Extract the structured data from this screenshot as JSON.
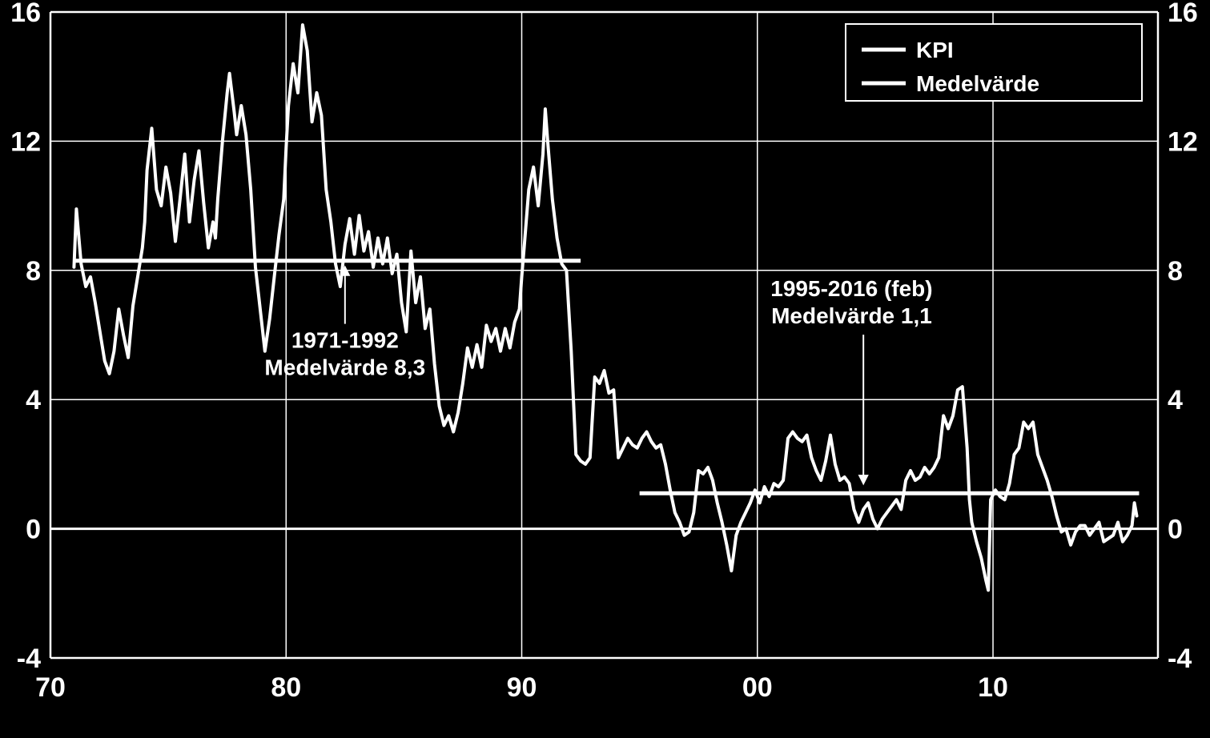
{
  "chart": {
    "type": "line",
    "background_color": "#000000",
    "line_color": "#ffffff",
    "grid_color": "#ffffff",
    "text_color": "#ffffff",
    "line_width": 4,
    "mean_line_width": 5,
    "tick_fontsize": 34,
    "annot_fontsize": 28,
    "legend_fontsize": 28,
    "x": {
      "min": 70,
      "max": 17,
      "domain_start": 1970,
      "domain_end": 2017,
      "ticks": [
        1970,
        1980,
        1990,
        2000,
        2010
      ],
      "tick_labels": [
        "70",
        "80",
        "90",
        "00",
        "10"
      ]
    },
    "y": {
      "min": -4,
      "max": 16,
      "ticks": [
        -4,
        0,
        4,
        8,
        12,
        16
      ],
      "tick_labels": [
        "-4",
        "0",
        "4",
        "8",
        "12",
        "16"
      ]
    },
    "y_right": {
      "ticks": [
        -4,
        0,
        4,
        8,
        12,
        16
      ],
      "tick_labels": [
        "-4",
        "0",
        "4",
        "8",
        "12",
        "16"
      ]
    },
    "legend": {
      "items": [
        {
          "label": "KPI"
        },
        {
          "label": "Medelvärde"
        }
      ]
    },
    "means": [
      {
        "from_year": 1971,
        "to_year": 1992.5,
        "value": 8.3
      },
      {
        "from_year": 1995,
        "to_year": 2016.2,
        "value": 1.1
      }
    ],
    "annotations": [
      {
        "line1": "1971-1992",
        "line2": "Medelvärde 8,3",
        "x_year": 1982.5,
        "y_value": 5.6,
        "arrow_to_y": 8.1,
        "arrow_x_year": 1982.5
      },
      {
        "line1": "1995-2016 (feb)",
        "line2": "Medelvärde 1,1",
        "x_year": 2004,
        "y_value": 7.2,
        "arrow_to_y": 1.4,
        "arrow_x_year": 2004.5
      }
    ],
    "series_kpi": [
      [
        1971.0,
        8.1
      ],
      [
        1971.1,
        9.9
      ],
      [
        1971.3,
        8.2
      ],
      [
        1971.5,
        7.5
      ],
      [
        1971.7,
        7.8
      ],
      [
        1971.9,
        7.0
      ],
      [
        1972.1,
        6.1
      ],
      [
        1972.3,
        5.2
      ],
      [
        1972.5,
        4.8
      ],
      [
        1972.7,
        5.5
      ],
      [
        1972.9,
        6.8
      ],
      [
        1973.1,
        6.0
      ],
      [
        1973.3,
        5.3
      ],
      [
        1973.5,
        6.9
      ],
      [
        1973.7,
        7.8
      ],
      [
        1973.9,
        8.7
      ],
      [
        1974.0,
        9.5
      ],
      [
        1974.1,
        11.1
      ],
      [
        1974.3,
        12.4
      ],
      [
        1974.5,
        10.5
      ],
      [
        1974.7,
        10.0
      ],
      [
        1974.9,
        11.2
      ],
      [
        1975.1,
        10.4
      ],
      [
        1975.3,
        8.9
      ],
      [
        1975.5,
        10.2
      ],
      [
        1975.7,
        11.6
      ],
      [
        1975.9,
        9.5
      ],
      [
        1976.1,
        10.8
      ],
      [
        1976.3,
        11.7
      ],
      [
        1976.5,
        10.1
      ],
      [
        1976.7,
        8.7
      ],
      [
        1976.9,
        9.5
      ],
      [
        1977.0,
        9.0
      ],
      [
        1977.1,
        10.2
      ],
      [
        1977.3,
        12.0
      ],
      [
        1977.5,
        13.5
      ],
      [
        1977.6,
        14.1
      ],
      [
        1977.8,
        12.9
      ],
      [
        1977.9,
        12.2
      ],
      [
        1978.1,
        13.1
      ],
      [
        1978.3,
        12.2
      ],
      [
        1978.5,
        10.5
      ],
      [
        1978.7,
        8.1
      ],
      [
        1978.9,
        6.8
      ],
      [
        1979.1,
        5.5
      ],
      [
        1979.3,
        6.5
      ],
      [
        1979.5,
        7.8
      ],
      [
        1979.7,
        9.1
      ],
      [
        1979.9,
        10.2
      ],
      [
        1980.0,
        11.8
      ],
      [
        1980.1,
        13.1
      ],
      [
        1980.3,
        14.4
      ],
      [
        1980.5,
        13.5
      ],
      [
        1980.7,
        15.6
      ],
      [
        1980.9,
        14.8
      ],
      [
        1981.1,
        12.6
      ],
      [
        1981.3,
        13.5
      ],
      [
        1981.5,
        12.8
      ],
      [
        1981.7,
        10.5
      ],
      [
        1981.9,
        9.5
      ],
      [
        1982.1,
        8.2
      ],
      [
        1982.3,
        7.5
      ],
      [
        1982.5,
        8.8
      ],
      [
        1982.7,
        9.6
      ],
      [
        1982.9,
        8.5
      ],
      [
        1983.1,
        9.7
      ],
      [
        1983.3,
        8.6
      ],
      [
        1983.5,
        9.2
      ],
      [
        1983.7,
        8.1
      ],
      [
        1983.9,
        9.0
      ],
      [
        1984.1,
        8.2
      ],
      [
        1984.3,
        9.0
      ],
      [
        1984.5,
        7.9
      ],
      [
        1984.7,
        8.5
      ],
      [
        1984.9,
        7.0
      ],
      [
        1985.1,
        6.1
      ],
      [
        1985.3,
        8.6
      ],
      [
        1985.5,
        7.0
      ],
      [
        1985.7,
        7.8
      ],
      [
        1985.9,
        6.2
      ],
      [
        1986.1,
        6.8
      ],
      [
        1986.3,
        5.1
      ],
      [
        1986.5,
        3.8
      ],
      [
        1986.7,
        3.2
      ],
      [
        1986.9,
        3.5
      ],
      [
        1987.1,
        3.0
      ],
      [
        1987.3,
        3.6
      ],
      [
        1987.5,
        4.5
      ],
      [
        1987.7,
        5.6
      ],
      [
        1987.9,
        5.0
      ],
      [
        1988.1,
        5.7
      ],
      [
        1988.3,
        5.0
      ],
      [
        1988.5,
        6.3
      ],
      [
        1988.7,
        5.8
      ],
      [
        1988.9,
        6.2
      ],
      [
        1989.1,
        5.5
      ],
      [
        1989.3,
        6.2
      ],
      [
        1989.5,
        5.6
      ],
      [
        1989.7,
        6.4
      ],
      [
        1989.9,
        6.8
      ],
      [
        1990.0,
        7.8
      ],
      [
        1990.1,
        8.7
      ],
      [
        1990.3,
        10.5
      ],
      [
        1990.5,
        11.2
      ],
      [
        1990.7,
        10.0
      ],
      [
        1990.9,
        11.6
      ],
      [
        1991.0,
        13.0
      ],
      [
        1991.1,
        12.0
      ],
      [
        1991.3,
        10.2
      ],
      [
        1991.5,
        9.0
      ],
      [
        1991.7,
        8.2
      ],
      [
        1991.9,
        8.0
      ],
      [
        1992.1,
        5.5
      ],
      [
        1992.3,
        2.3
      ],
      [
        1992.5,
        2.1
      ],
      [
        1992.7,
        2.0
      ],
      [
        1992.9,
        2.2
      ],
      [
        1993.1,
        4.7
      ],
      [
        1993.3,
        4.5
      ],
      [
        1993.5,
        4.9
      ],
      [
        1993.7,
        4.2
      ],
      [
        1993.9,
        4.3
      ],
      [
        1994.1,
        2.2
      ],
      [
        1994.3,
        2.5
      ],
      [
        1994.5,
        2.8
      ],
      [
        1994.7,
        2.6
      ],
      [
        1994.9,
        2.5
      ],
      [
        1995.1,
        2.8
      ],
      [
        1995.3,
        3.0
      ],
      [
        1995.5,
        2.7
      ],
      [
        1995.7,
        2.5
      ],
      [
        1995.9,
        2.6
      ],
      [
        1996.1,
        2.0
      ],
      [
        1996.3,
        1.2
      ],
      [
        1996.5,
        0.5
      ],
      [
        1996.7,
        0.2
      ],
      [
        1996.9,
        -0.2
      ],
      [
        1997.1,
        -0.1
      ],
      [
        1997.3,
        0.5
      ],
      [
        1997.5,
        1.8
      ],
      [
        1997.7,
        1.7
      ],
      [
        1997.9,
        1.9
      ],
      [
        1998.1,
        1.5
      ],
      [
        1998.3,
        0.8
      ],
      [
        1998.5,
        0.2
      ],
      [
        1998.7,
        -0.5
      ],
      [
        1998.9,
        -1.3
      ],
      [
        1999.1,
        -0.2
      ],
      [
        1999.3,
        0.2
      ],
      [
        1999.5,
        0.5
      ],
      [
        1999.7,
        0.8
      ],
      [
        1999.9,
        1.2
      ],
      [
        2000.1,
        0.8
      ],
      [
        2000.3,
        1.3
      ],
      [
        2000.5,
        1.0
      ],
      [
        2000.7,
        1.4
      ],
      [
        2000.9,
        1.3
      ],
      [
        2001.1,
        1.5
      ],
      [
        2001.3,
        2.8
      ],
      [
        2001.5,
        3.0
      ],
      [
        2001.7,
        2.8
      ],
      [
        2001.9,
        2.7
      ],
      [
        2002.1,
        2.9
      ],
      [
        2002.3,
        2.2
      ],
      [
        2002.5,
        1.8
      ],
      [
        2002.7,
        1.5
      ],
      [
        2002.9,
        2.1
      ],
      [
        2003.1,
        2.9
      ],
      [
        2003.3,
        2.0
      ],
      [
        2003.5,
        1.5
      ],
      [
        2003.7,
        1.6
      ],
      [
        2003.9,
        1.4
      ],
      [
        2004.1,
        0.6
      ],
      [
        2004.3,
        0.2
      ],
      [
        2004.5,
        0.6
      ],
      [
        2004.7,
        0.8
      ],
      [
        2004.9,
        0.3
      ],
      [
        2005.1,
        0.0
      ],
      [
        2005.3,
        0.3
      ],
      [
        2005.5,
        0.5
      ],
      [
        2005.7,
        0.7
      ],
      [
        2005.9,
        0.9
      ],
      [
        2006.1,
        0.6
      ],
      [
        2006.3,
        1.5
      ],
      [
        2006.5,
        1.8
      ],
      [
        2006.7,
        1.5
      ],
      [
        2006.9,
        1.6
      ],
      [
        2007.1,
        1.9
      ],
      [
        2007.3,
        1.7
      ],
      [
        2007.5,
        1.9
      ],
      [
        2007.7,
        2.2
      ],
      [
        2007.9,
        3.5
      ],
      [
        2008.1,
        3.1
      ],
      [
        2008.3,
        3.5
      ],
      [
        2008.5,
        4.3
      ],
      [
        2008.7,
        4.4
      ],
      [
        2008.9,
        2.5
      ],
      [
        2009.0,
        0.9
      ],
      [
        2009.1,
        0.2
      ],
      [
        2009.3,
        -0.4
      ],
      [
        2009.5,
        -0.9
      ],
      [
        2009.7,
        -1.6
      ],
      [
        2009.8,
        -1.9
      ],
      [
        2009.9,
        0.9
      ],
      [
        2010.1,
        1.2
      ],
      [
        2010.3,
        1.0
      ],
      [
        2010.5,
        0.9
      ],
      [
        2010.7,
        1.4
      ],
      [
        2010.9,
        2.3
      ],
      [
        2011.1,
        2.5
      ],
      [
        2011.3,
        3.3
      ],
      [
        2011.5,
        3.1
      ],
      [
        2011.7,
        3.3
      ],
      [
        2011.9,
        2.3
      ],
      [
        2012.1,
        1.9
      ],
      [
        2012.3,
        1.5
      ],
      [
        2012.5,
        1.0
      ],
      [
        2012.7,
        0.4
      ],
      [
        2012.9,
        -0.1
      ],
      [
        2013.1,
        0.0
      ],
      [
        2013.3,
        -0.5
      ],
      [
        2013.5,
        -0.1
      ],
      [
        2013.7,
        0.1
      ],
      [
        2013.9,
        0.1
      ],
      [
        2014.1,
        -0.2
      ],
      [
        2014.3,
        0.0
      ],
      [
        2014.5,
        0.2
      ],
      [
        2014.7,
        -0.4
      ],
      [
        2014.9,
        -0.3
      ],
      [
        2015.1,
        -0.2
      ],
      [
        2015.3,
        0.2
      ],
      [
        2015.5,
        -0.4
      ],
      [
        2015.7,
        -0.2
      ],
      [
        2015.9,
        0.1
      ],
      [
        2016.0,
        0.8
      ],
      [
        2016.1,
        0.4
      ]
    ]
  }
}
